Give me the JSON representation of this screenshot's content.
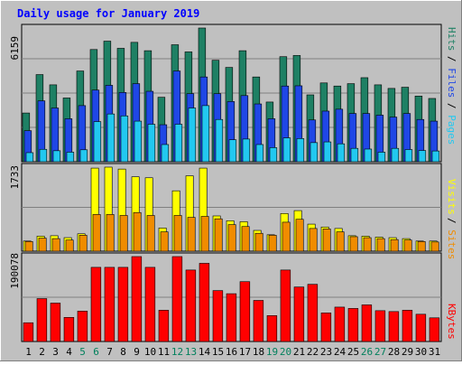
{
  "chart_data": [
    {
      "type": "bar",
      "title": "Daily usage for January 2019",
      "ymax_label": "6159",
      "categories": [
        "1",
        "2",
        "3",
        "4",
        "5",
        "6",
        "7",
        "8",
        "9",
        "10",
        "11",
        "12",
        "13",
        "14",
        "15",
        "16",
        "17",
        "18",
        "19",
        "20",
        "21",
        "22",
        "23",
        "24",
        "25",
        "26",
        "27",
        "28",
        "29",
        "30",
        "31"
      ],
      "weekend_days": [
        "5",
        "6",
        "12",
        "13",
        "19",
        "20",
        "26",
        "27"
      ],
      "series": [
        {
          "name": "Hits",
          "color": "#1e8064",
          "values": [
            2040,
            3650,
            3220,
            2670,
            3800,
            4700,
            5050,
            4750,
            5000,
            4650,
            2700,
            4900,
            4600,
            5600,
            4250,
            3950,
            4650,
            3550,
            2500,
            4400,
            4450,
            2800,
            3300,
            3170,
            3270,
            3520,
            3220,
            3070,
            3120,
            2750,
            2650
          ]
        },
        {
          "name": "Files",
          "color": "#1f47e6",
          "values": [
            1300,
            2550,
            2250,
            1800,
            2350,
            3000,
            3200,
            2900,
            3270,
            2950,
            1550,
            3800,
            2850,
            3550,
            2850,
            2520,
            2770,
            2420,
            1800,
            3170,
            3180,
            1750,
            2120,
            2200,
            2020,
            2020,
            1950,
            1870,
            2020,
            1770,
            1700
          ]
        },
        {
          "name": "Pages",
          "color": "#22c8f0",
          "values": [
            380,
            520,
            460,
            400,
            500,
            1680,
            2000,
            1920,
            1700,
            1570,
            720,
            1570,
            2250,
            2350,
            1770,
            920,
            950,
            720,
            590,
            1000,
            970,
            800,
            830,
            750,
            560,
            530,
            400,
            560,
            510,
            470,
            450
          ]
        }
      ]
    },
    {
      "type": "bar",
      "ymax_label": "1733",
      "categories": [
        "1",
        "2",
        "3",
        "4",
        "5",
        "6",
        "7",
        "8",
        "9",
        "10",
        "11",
        "12",
        "13",
        "14",
        "15",
        "16",
        "17",
        "18",
        "19",
        "20",
        "21",
        "22",
        "23",
        "24",
        "25",
        "26",
        "27",
        "28",
        "29",
        "30",
        "31"
      ],
      "series": [
        {
          "name": "Visits",
          "color": "#ffff00",
          "values": [
            210,
            310,
            320,
            280,
            360,
            1720,
            1740,
            1700,
            1540,
            1520,
            480,
            1250,
            1560,
            1720,
            730,
            630,
            610,
            430,
            340,
            780,
            840,
            560,
            500,
            470,
            320,
            310,
            290,
            280,
            260,
            210,
            210
          ]
        },
        {
          "name": "Sites",
          "color": "#f08c00",
          "values": [
            200,
            270,
            260,
            230,
            330,
            760,
            760,
            740,
            800,
            740,
            400,
            740,
            700,
            720,
            670,
            550,
            510,
            370,
            330,
            600,
            660,
            470,
            460,
            400,
            300,
            280,
            260,
            240,
            230,
            200,
            190
          ]
        }
      ]
    },
    {
      "type": "bar",
      "ymax_label": "190078",
      "categories": [
        "1",
        "2",
        "3",
        "4",
        "5",
        "6",
        "7",
        "8",
        "9",
        "10",
        "11",
        "12",
        "13",
        "14",
        "15",
        "16",
        "17",
        "18",
        "19",
        "20",
        "21",
        "22",
        "23",
        "24",
        "25",
        "26",
        "27",
        "28",
        "29",
        "30",
        "31"
      ],
      "series": [
        {
          "name": "KBytes",
          "color": "#ff0000",
          "values": [
            42000,
            96000,
            86000,
            54000,
            68000,
            166000,
            166000,
            166000,
            190078,
            166000,
            70000,
            190078,
            160000,
            175000,
            114000,
            107000,
            134000,
            92000,
            58000,
            160000,
            122000,
            128000,
            64000,
            77000,
            74000,
            82000,
            69000,
            67000,
            70000,
            61000,
            53000
          ]
        }
      ]
    }
  ],
  "side_labels": {
    "top": {
      "pages": "Pages",
      "files": "Files",
      "hits": "Hits",
      "sep": " / "
    },
    "middle": {
      "sites": "Sites",
      "visits": "Visits",
      "sep": " / "
    },
    "bottom": {
      "kbytes": "KBytes"
    }
  },
  "colors": {
    "background": "#c0c0c0",
    "title": "#0000ff",
    "day_label": "#000000",
    "weekend_label": "#00805c",
    "grid": "#808080"
  }
}
